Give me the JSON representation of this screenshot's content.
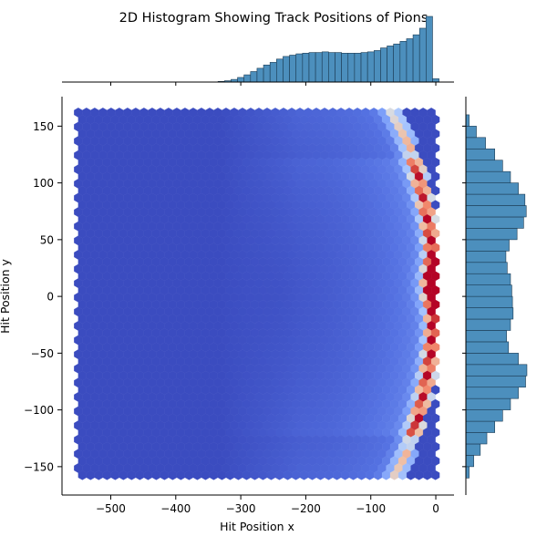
{
  "chart_data": {
    "type": "hexbin_joint",
    "title": "2D Histogram Showing Track Positions of Pions",
    "xlabel": "Hit Position x",
    "ylabel": "Hit Position y",
    "xlim": [
      -575,
      28
    ],
    "ylim": [
      -175,
      176
    ],
    "x_ticks": [
      -500,
      -400,
      -300,
      -200,
      -100,
      0
    ],
    "y_ticks": [
      -150,
      -100,
      -50,
      0,
      50,
      100,
      150
    ],
    "x_tick_labels": [
      "−500",
      "−400",
      "−300",
      "−200",
      "−100",
      "0"
    ],
    "y_tick_labels": [
      "−150",
      "−100",
      "−50",
      "0",
      "50",
      "100",
      "150"
    ],
    "colormap": "coolwarm",
    "data_range": {
      "x": [
        -550,
        0
      ],
      "y": [
        -160,
        162
      ]
    },
    "ridge": {
      "shape": "arc",
      "center": [
        -245,
        0
      ],
      "radius": 245,
      "y_extent": [
        -160,
        162
      ],
      "peak_at": [
        -5,
        10
      ]
    },
    "marginal_x": {
      "type": "histogram",
      "bins": [
        {
          "x": -330,
          "count": 0.01
        },
        {
          "x": -320,
          "count": 0.02
        },
        {
          "x": -310,
          "count": 0.04
        },
        {
          "x": -300,
          "count": 0.07
        },
        {
          "x": -290,
          "count": 0.11
        },
        {
          "x": -280,
          "count": 0.16
        },
        {
          "x": -270,
          "count": 0.21
        },
        {
          "x": -260,
          "count": 0.26
        },
        {
          "x": -250,
          "count": 0.3
        },
        {
          "x": -240,
          "count": 0.35
        },
        {
          "x": -230,
          "count": 0.39
        },
        {
          "x": -220,
          "count": 0.41
        },
        {
          "x": -210,
          "count": 0.43
        },
        {
          "x": -200,
          "count": 0.44
        },
        {
          "x": -190,
          "count": 0.45
        },
        {
          "x": -180,
          "count": 0.45
        },
        {
          "x": -170,
          "count": 0.46
        },
        {
          "x": -160,
          "count": 0.45
        },
        {
          "x": -150,
          "count": 0.45
        },
        {
          "x": -140,
          "count": 0.44
        },
        {
          "x": -130,
          "count": 0.44
        },
        {
          "x": -120,
          "count": 0.44
        },
        {
          "x": -110,
          "count": 0.45
        },
        {
          "x": -100,
          "count": 0.46
        },
        {
          "x": -90,
          "count": 0.48
        },
        {
          "x": -80,
          "count": 0.52
        },
        {
          "x": -70,
          "count": 0.55
        },
        {
          "x": -60,
          "count": 0.58
        },
        {
          "x": -50,
          "count": 0.62
        },
        {
          "x": -40,
          "count": 0.66
        },
        {
          "x": -30,
          "count": 0.72
        },
        {
          "x": -20,
          "count": 0.82
        },
        {
          "x": -10,
          "count": 1.0
        },
        {
          "x": 0,
          "count": 0.05
        }
      ]
    },
    "marginal_y": {
      "type": "histogram",
      "bins": [
        {
          "y": -155,
          "count": 0.05
        },
        {
          "y": -145,
          "count": 0.12
        },
        {
          "y": -135,
          "count": 0.22
        },
        {
          "y": -125,
          "count": 0.32
        },
        {
          "y": -115,
          "count": 0.44
        },
        {
          "y": -105,
          "count": 0.56
        },
        {
          "y": -95,
          "count": 0.68
        },
        {
          "y": -85,
          "count": 0.8
        },
        {
          "y": -75,
          "count": 0.91
        },
        {
          "y": -65,
          "count": 0.93
        },
        {
          "y": -55,
          "count": 0.8
        },
        {
          "y": -45,
          "count": 0.65
        },
        {
          "y": -35,
          "count": 0.62
        },
        {
          "y": -25,
          "count": 0.68
        },
        {
          "y": -15,
          "count": 0.72
        },
        {
          "y": -5,
          "count": 0.71
        },
        {
          "y": 5,
          "count": 0.7
        },
        {
          "y": 15,
          "count": 0.68
        },
        {
          "y": 25,
          "count": 0.63
        },
        {
          "y": 35,
          "count": 0.61
        },
        {
          "y": 45,
          "count": 0.66
        },
        {
          "y": 55,
          "count": 0.78
        },
        {
          "y": 65,
          "count": 0.88
        },
        {
          "y": 75,
          "count": 0.92
        },
        {
          "y": 85,
          "count": 0.9
        },
        {
          "y": 95,
          "count": 0.8
        },
        {
          "y": 105,
          "count": 0.68
        },
        {
          "y": 115,
          "count": 0.56
        },
        {
          "y": 125,
          "count": 0.44
        },
        {
          "y": 135,
          "count": 0.3
        },
        {
          "y": 145,
          "count": 0.16
        },
        {
          "y": 155,
          "count": 0.05
        }
      ]
    }
  }
}
